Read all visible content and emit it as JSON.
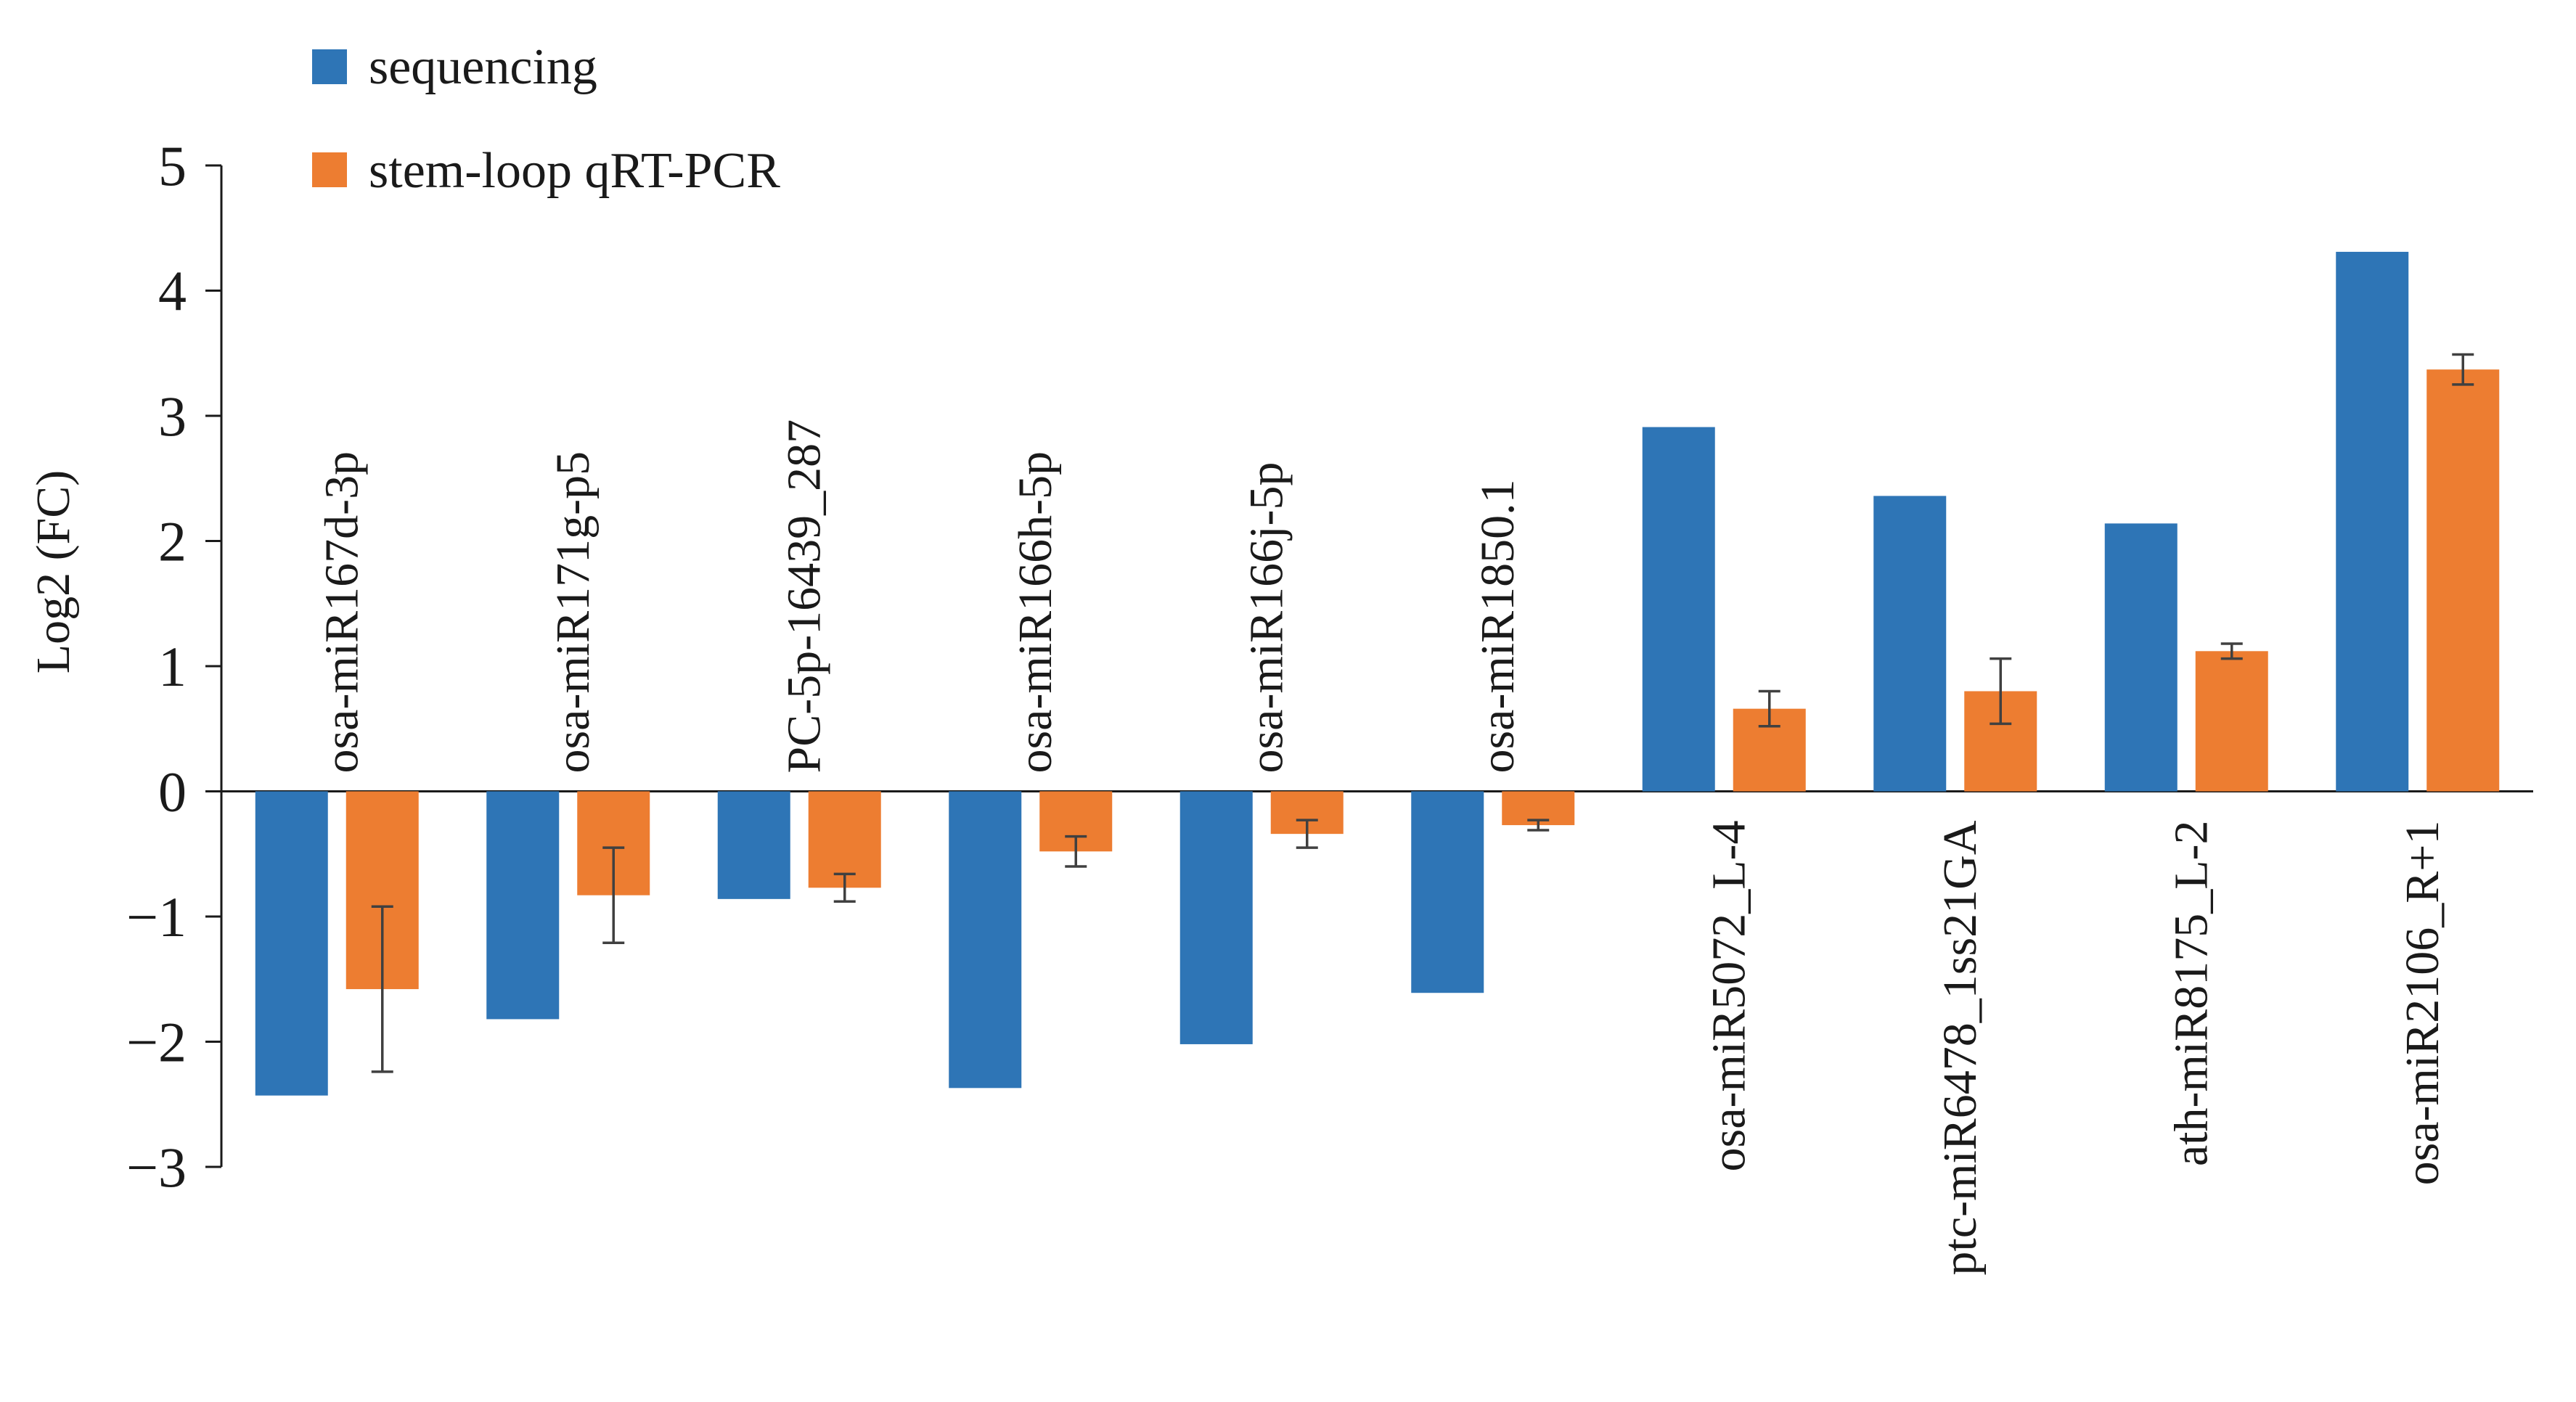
{
  "chart_data": {
    "type": "bar",
    "title": "",
    "xlabel": "",
    "ylabel": "Log2 (FC)",
    "ylim": [
      -3,
      5
    ],
    "yticks": [
      "5",
      "4",
      "3",
      "2",
      "1",
      "0",
      "−1",
      "−2",
      "−3"
    ],
    "ytick_values": [
      5,
      4,
      3,
      2,
      1,
      0,
      -1,
      -2,
      -3
    ],
    "legend_position": "top-left",
    "categories": [
      "osa-miR167d-3p",
      "osa-miR171g-p5",
      "PC-5p-16439_287",
      "osa-miR166h-5p",
      "osa-miR166j-5p",
      "osa-miR1850.1",
      "osa-miR5072_L-4",
      "ptc-miR6478_1ss21GA",
      "ath-miR8175_L-2",
      "osa-miR2106_R+1"
    ],
    "series": [
      {
        "name": "sequencing",
        "color": "#2e75b6",
        "values": [
          -2.43,
          -1.82,
          -0.86,
          -2.37,
          -2.02,
          -1.61,
          2.91,
          2.36,
          2.14,
          4.31
        ]
      },
      {
        "name": "stem-loop qRT-PCR",
        "color": "#ed7d31",
        "values": [
          -1.58,
          -0.83,
          -0.77,
          -0.48,
          -0.34,
          -0.27,
          0.66,
          0.8,
          1.12,
          3.37
        ],
        "errors": [
          0.66,
          0.38,
          0.11,
          0.12,
          0.11,
          0.04,
          0.14,
          0.26,
          0.06,
          0.12
        ]
      }
    ]
  }
}
